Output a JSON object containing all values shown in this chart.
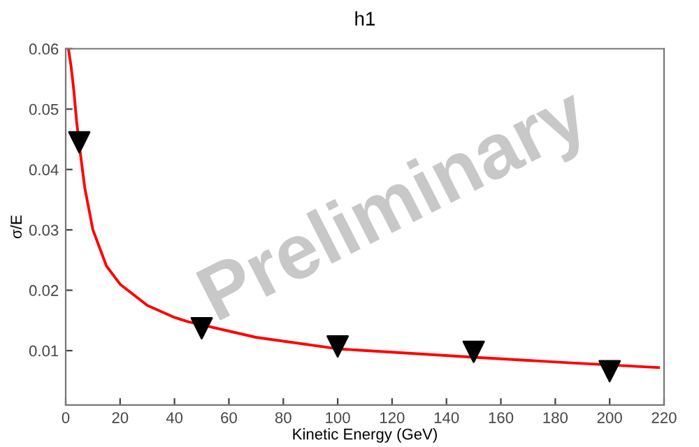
{
  "chart_data": {
    "type": "scatter",
    "title": "h1",
    "xlabel": "Kinetic Energy (GeV)",
    "ylabel": "σ/E",
    "xlim": [
      0,
      220
    ],
    "xticks": [
      0,
      20,
      40,
      60,
      80,
      100,
      120,
      140,
      160,
      180,
      200,
      220
    ],
    "ylim": [
      0.001,
      0.06
    ],
    "yticks": [
      0.01,
      0.02,
      0.03,
      0.04,
      0.05,
      0.06
    ],
    "grid": false,
    "annotations": [
      "Preliminary"
    ],
    "series": [
      {
        "color": "#000000",
        "marker": "triangle",
        "x": [
          5,
          50,
          100,
          150,
          200
        ],
        "values": [
          0.0445,
          0.0137,
          0.0107,
          0.0098,
          0.0066
        ]
      },
      {
        "type": "line",
        "color": "#ff0000",
        "marker": "none",
        "line_style": "solid",
        "x": [
          1,
          2,
          3,
          4,
          5,
          7,
          10,
          15,
          20,
          30,
          40,
          45,
          70,
          100,
          150,
          185,
          218
        ],
        "values": [
          0.06,
          0.057,
          0.053,
          0.048,
          0.044,
          0.037,
          0.03,
          0.024,
          0.021,
          0.0175,
          0.0155,
          0.0148,
          0.0122,
          0.0103,
          0.0089,
          0.008,
          0.0072
        ]
      }
    ]
  }
}
